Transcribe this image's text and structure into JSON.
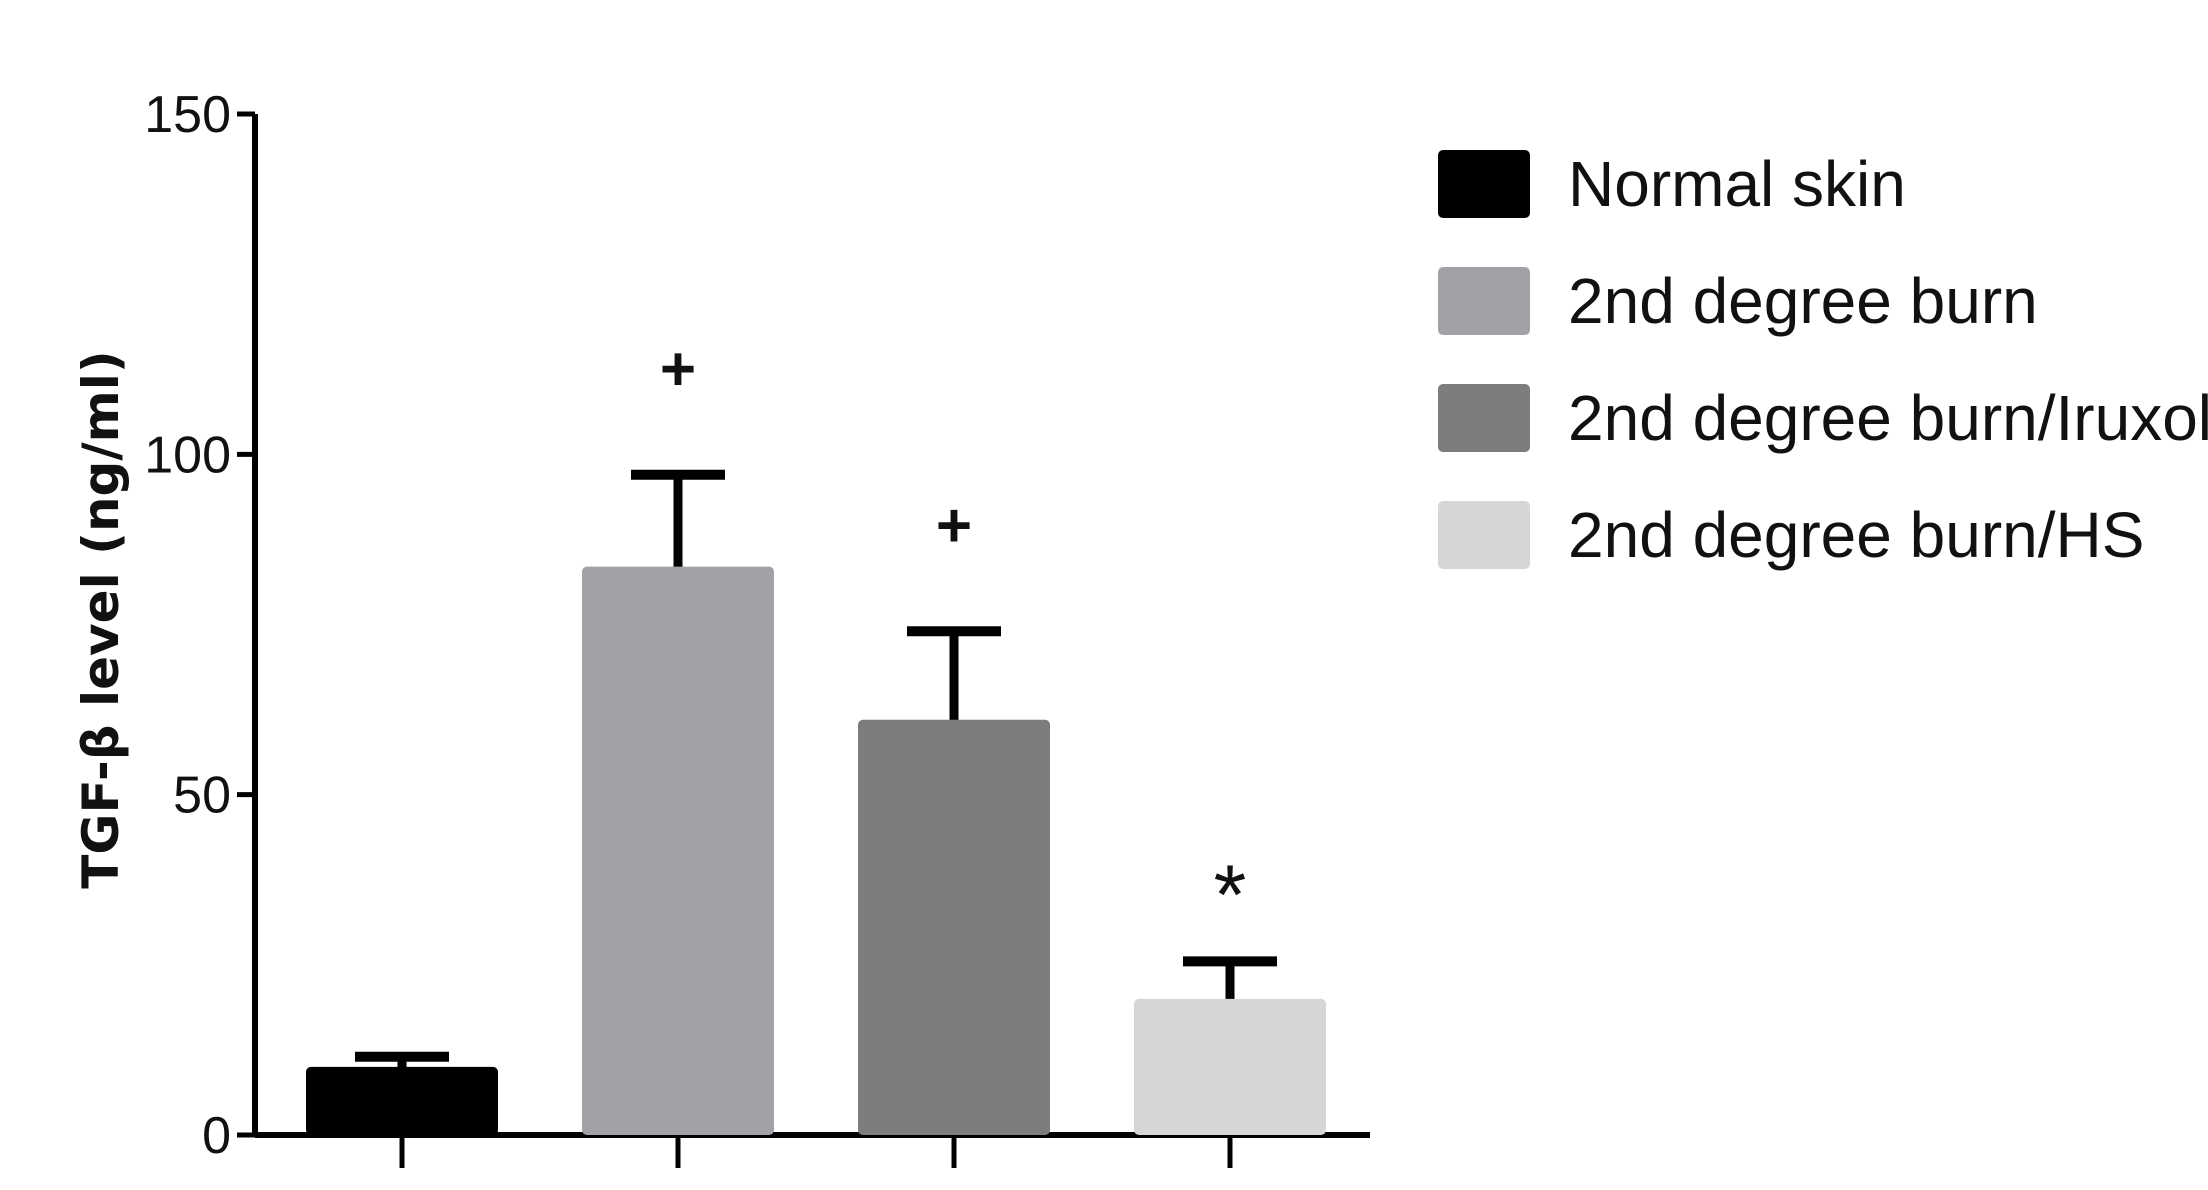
{
  "chart_data": {
    "type": "bar",
    "title": "",
    "xlabel": "",
    "ylabel": "TGF-β level (ng/ml)",
    "ylim": [
      0,
      150
    ],
    "yticks": [
      0,
      50,
      100,
      150
    ],
    "grid": false,
    "legend_position": "right",
    "categories": [
      "Normal skin",
      "2nd degree burn",
      "2nd degree burn/Iruxol",
      "2nd degree burn/HS"
    ],
    "values": [
      10,
      83.5,
      61,
      20
    ],
    "errors": [
      1.5,
      13.5,
      13,
      5.5
    ],
    "colors": [
      "#000000",
      "#a2a2a6",
      "#7d7d7d",
      "#d6d6d6"
    ],
    "annotations": [
      "",
      "+",
      "+",
      "*"
    ]
  }
}
